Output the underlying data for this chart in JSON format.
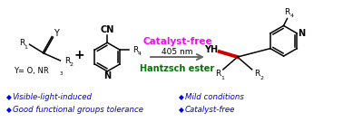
{
  "bg_color": "#ffffff",
  "arrow_color": "#666666",
  "magenta_color": "#ff00ff",
  "green_color": "#007700",
  "black_color": "#000000",
  "blue_color": "#0000dd",
  "red_color": "#cc0000",
  "bullet_items_left": [
    "Visible-light-induced",
    "Good functional groups tolerance"
  ],
  "bullet_items_right": [
    "Mild conditions",
    "Catalyst-free"
  ],
  "catalyst_free_label": "Catalyst-free",
  "nm_label": "405 nm",
  "hantzsch_label": "Hantzsch ester",
  "figsize": [
    3.78,
    1.35
  ],
  "dpi": 100
}
